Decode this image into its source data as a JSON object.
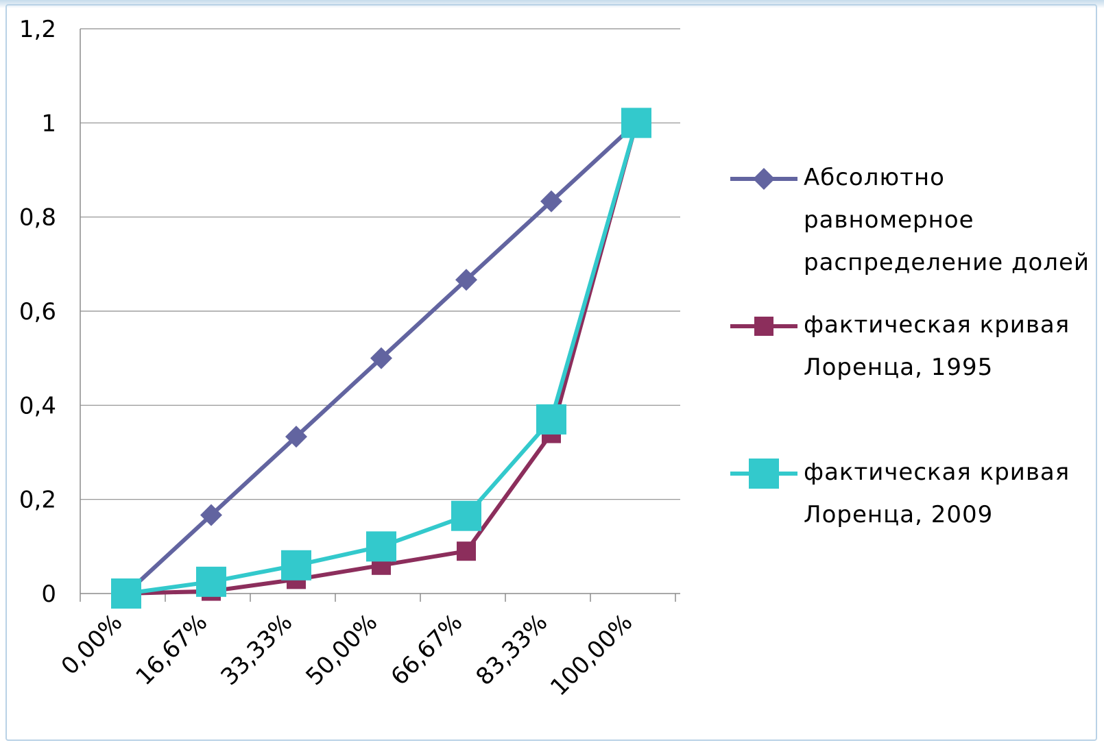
{
  "chart_data": {
    "type": "line",
    "categories": [
      "0,00%",
      "16,67%",
      "33,33%",
      "50,00%",
      "66,67%",
      "83,33%",
      "100,00%"
    ],
    "ylim": [
      0,
      1.2
    ],
    "y_ticks": [
      "0",
      "0,2",
      "0,4",
      "0,6",
      "0,8",
      "1",
      "1,2"
    ],
    "grid": "horizontal",
    "legend_position": "right",
    "series": [
      {
        "name": "Абсолютно равномерное распределение долей",
        "legend_lines": [
          "Абсолютно",
          "равномерное",
          "распределение долей"
        ],
        "color": "#6264a0",
        "marker": "diamond",
        "values": [
          0,
          0.1667,
          0.3333,
          0.5,
          0.6667,
          0.8333,
          1.0
        ]
      },
      {
        "name": "фактическая кривая Лоренца, 1995",
        "legend_lines": [
          "фактическая кривая",
          "Лоренца, 1995"
        ],
        "color": "#8c2e5c",
        "marker": "square",
        "values": [
          0,
          0.005,
          0.03,
          0.06,
          0.09,
          0.34,
          1.0
        ]
      },
      {
        "name": "фактическая кривая Лоренца, 2009",
        "legend_lines": [
          "фактическая кривая",
          "Лоренца, 2009"
        ],
        "color": "#33c9cc",
        "marker": "square-large",
        "values": [
          0,
          0.025,
          0.06,
          0.1,
          0.165,
          0.37,
          1.0
        ]
      }
    ]
  }
}
